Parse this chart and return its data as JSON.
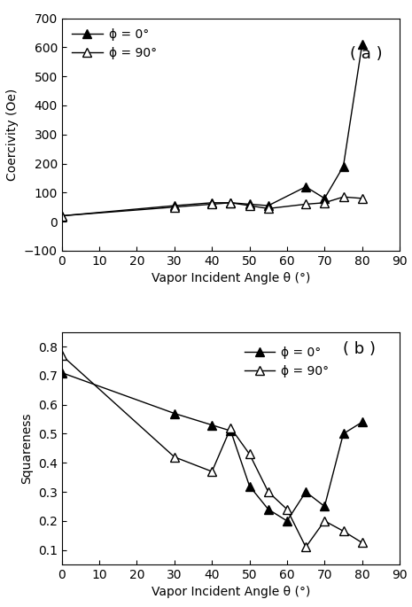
{
  "coercivity_phi0_x": [
    0,
    30,
    40,
    45,
    50,
    55,
    65,
    70,
    75,
    80
  ],
  "coercivity_phi0_y": [
    20,
    55,
    65,
    65,
    60,
    55,
    120,
    80,
    190,
    610
  ],
  "coercivity_phi90_x": [
    0,
    30,
    40,
    45,
    50,
    55,
    65,
    70,
    75,
    80
  ],
  "coercivity_phi90_y": [
    20,
    50,
    60,
    65,
    55,
    45,
    60,
    65,
    85,
    80
  ],
  "squareness_phi0_x": [
    0,
    30,
    40,
    45,
    50,
    55,
    60,
    65,
    70,
    75,
    80
  ],
  "squareness_phi0_y": [
    0.71,
    0.57,
    0.53,
    0.51,
    0.32,
    0.24,
    0.2,
    0.3,
    0.25,
    0.5,
    0.54
  ],
  "squareness_phi90_x": [
    0,
    30,
    40,
    45,
    50,
    55,
    60,
    65,
    70,
    75,
    80
  ],
  "squareness_phi90_y": [
    0.77,
    0.42,
    0.37,
    0.52,
    0.43,
    0.3,
    0.24,
    0.11,
    0.2,
    0.165,
    0.125
  ],
  "coercivity_ylim": [
    -100,
    700
  ],
  "coercivity_yticks": [
    -100,
    0,
    100,
    200,
    300,
    400,
    500,
    600,
    700
  ],
  "squareness_ylim": [
    0.05,
    0.85
  ],
  "squareness_yticks": [
    0.1,
    0.2,
    0.3,
    0.4,
    0.5,
    0.6,
    0.7,
    0.8
  ],
  "xlim": [
    0,
    90
  ],
  "xticks": [
    0,
    10,
    20,
    30,
    40,
    50,
    60,
    70,
    80,
    90
  ],
  "xlabel": "Vapor Incident Angle θ (°)",
  "ylabel_a": "Coercivity (Oe)",
  "ylabel_b": "Squareness",
  "label_phi0": "ϕ = 0°",
  "label_phi90": "ϕ = 90°",
  "panel_a_label": "( a )",
  "panel_b_label": "( b )",
  "bg_color": "#ffffff",
  "line_color": "#000000"
}
